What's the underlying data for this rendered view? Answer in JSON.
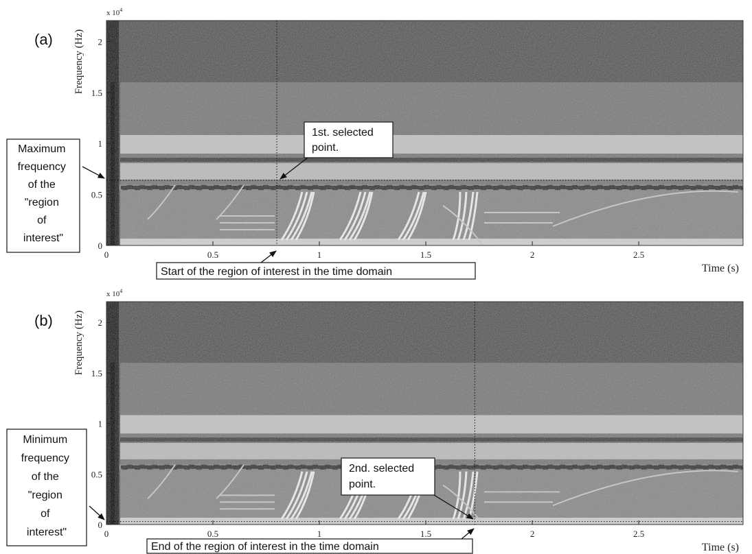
{
  "chart_data": [
    {
      "type": "spectrogram",
      "panel_label": "(a)",
      "xlabel": "Time (s)",
      "ylabel": "Frequency (Hz)",
      "y_multiplier": {
        "text": "x 10",
        "power": "4"
      },
      "xlim": [
        0,
        2.99
      ],
      "ylim": [
        0,
        22050
      ],
      "xticks": [
        0,
        0.5,
        1,
        1.5,
        2,
        2.5
      ],
      "yticks": [
        0,
        {
          "value": 5000,
          "label": "0.5"
        },
        {
          "value": 10000,
          "label": "1"
        },
        {
          "value": 15000,
          "label": "1.5"
        },
        {
          "value": 20000,
          "label": "2"
        }
      ],
      "selected_time": 0.8,
      "selected_frequency": 6400,
      "notes": {
        "frequency": [
          "Maximum",
          "frequency",
          "of the",
          "\"region",
          "of",
          "interest\""
        ],
        "point": [
          "1st. selected",
          "point."
        ],
        "time": "Start of the region of interest in the time domain"
      }
    },
    {
      "type": "spectrogram",
      "panel_label": "(b)",
      "xlabel": "Time (s)",
      "ylabel": "Frequency (Hz)",
      "y_multiplier": {
        "text": "x 10",
        "power": "4"
      },
      "xlim": [
        0,
        2.99
      ],
      "ylim": [
        0,
        22050
      ],
      "xticks": [
        0,
        0.5,
        1,
        1.5,
        2,
        2.5
      ],
      "yticks": [
        0,
        {
          "value": 5000,
          "label": "0.5"
        },
        {
          "value": 10000,
          "label": "1"
        },
        {
          "value": 15000,
          "label": "1.5"
        },
        {
          "value": 20000,
          "label": "2"
        }
      ],
      "selected_time": 1.73,
      "selected_frequency": 300,
      "notes": {
        "frequency": [
          "Minimum",
          "frequency",
          "of the",
          "\"region",
          "of",
          "interest\""
        ],
        "point": [
          "2nd. selected",
          "point."
        ],
        "time": "End of the region of interest in the time domain"
      }
    }
  ]
}
